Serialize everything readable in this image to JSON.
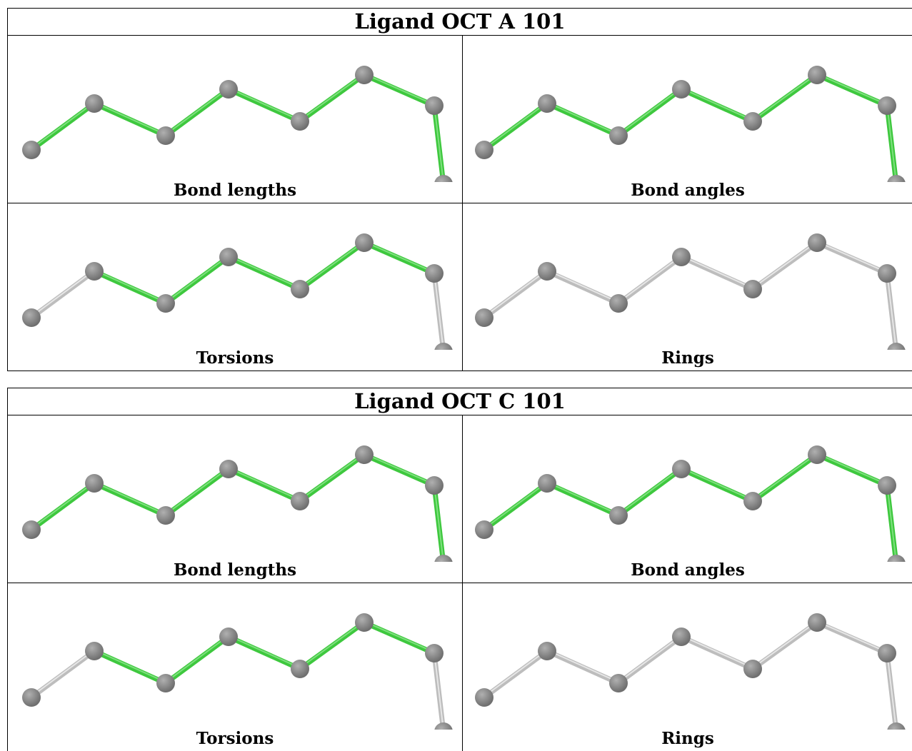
{
  "ligands": [
    {
      "title": "Ligand OCT A 101",
      "panels": [
        {
          "caption": "Bond lengths",
          "bonds": [
            "green",
            "green",
            "green",
            "green",
            "green",
            "green",
            "green"
          ]
        },
        {
          "caption": "Bond angles",
          "bonds": [
            "green",
            "green",
            "green",
            "green",
            "green",
            "green",
            "green"
          ]
        },
        {
          "caption": "Torsions",
          "bonds": [
            "grey",
            "green",
            "green",
            "green",
            "green",
            "green",
            "grey"
          ]
        },
        {
          "caption": "Rings",
          "bonds": [
            "grey",
            "grey",
            "grey",
            "grey",
            "grey",
            "grey",
            "grey"
          ]
        }
      ]
    },
    {
      "title": "Ligand OCT C 101",
      "panels": [
        {
          "caption": "Bond lengths",
          "bonds": [
            "green",
            "green",
            "green",
            "green",
            "green",
            "green",
            "green"
          ]
        },
        {
          "caption": "Bond angles",
          "bonds": [
            "green",
            "green",
            "green",
            "green",
            "green",
            "green",
            "green"
          ]
        },
        {
          "caption": "Torsions",
          "bonds": [
            "grey",
            "green",
            "green",
            "green",
            "green",
            "green",
            "grey"
          ]
        },
        {
          "caption": "Rings",
          "bonds": [
            "grey",
            "grey",
            "grey",
            "grey",
            "grey",
            "grey",
            "grey"
          ]
        }
      ]
    }
  ],
  "colors": {
    "green_bond": "#3ec83e",
    "green_bond_light": "#7ee07e",
    "grey_bond": "#bdbdbd",
    "grey_bond_light": "#e6e6e6",
    "atom": "#6e6e6e",
    "atom_highlight": "#b0b0b0"
  }
}
